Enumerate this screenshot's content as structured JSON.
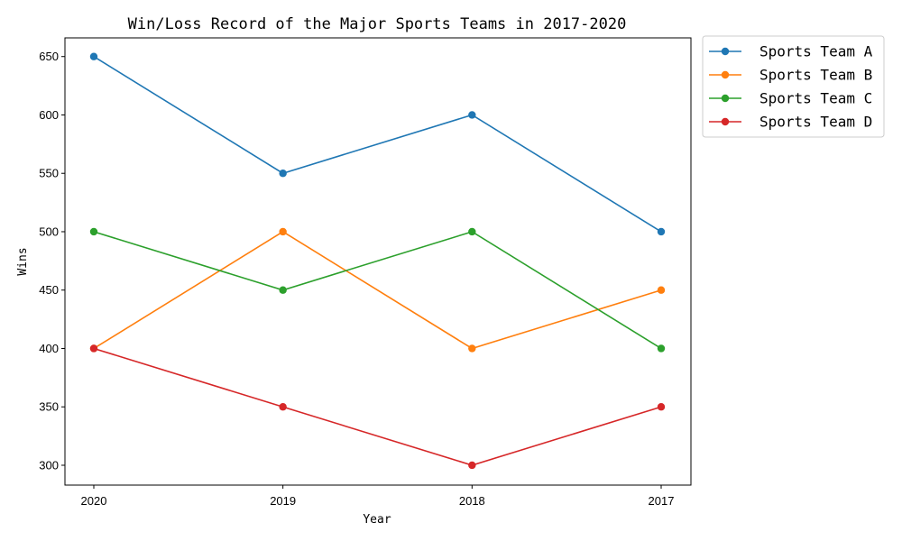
{
  "chart_data": {
    "type": "line",
    "title": "Win/Loss Record of the Major Sports Teams in 2017-2020",
    "xlabel": "Year",
    "ylabel": "Wins",
    "categories": [
      "2020",
      "2019",
      "2018",
      "2017"
    ],
    "ylim": [
      283,
      666
    ],
    "yticks": [
      300,
      350,
      400,
      450,
      500,
      550,
      600,
      650
    ],
    "grid": false,
    "legend_position": "outside-top-right",
    "series": [
      {
        "name": "Sports Team A",
        "color": "#1f77b4",
        "values": [
          650,
          550,
          600,
          500
        ]
      },
      {
        "name": "Sports Team B",
        "color": "#ff7f0e",
        "values": [
          400,
          500,
          400,
          450
        ]
      },
      {
        "name": "Sports Team C",
        "color": "#2ca02c",
        "values": [
          500,
          450,
          500,
          400
        ]
      },
      {
        "name": "Sports Team D",
        "color": "#d62728",
        "values": [
          400,
          350,
          300,
          350
        ]
      }
    ]
  }
}
